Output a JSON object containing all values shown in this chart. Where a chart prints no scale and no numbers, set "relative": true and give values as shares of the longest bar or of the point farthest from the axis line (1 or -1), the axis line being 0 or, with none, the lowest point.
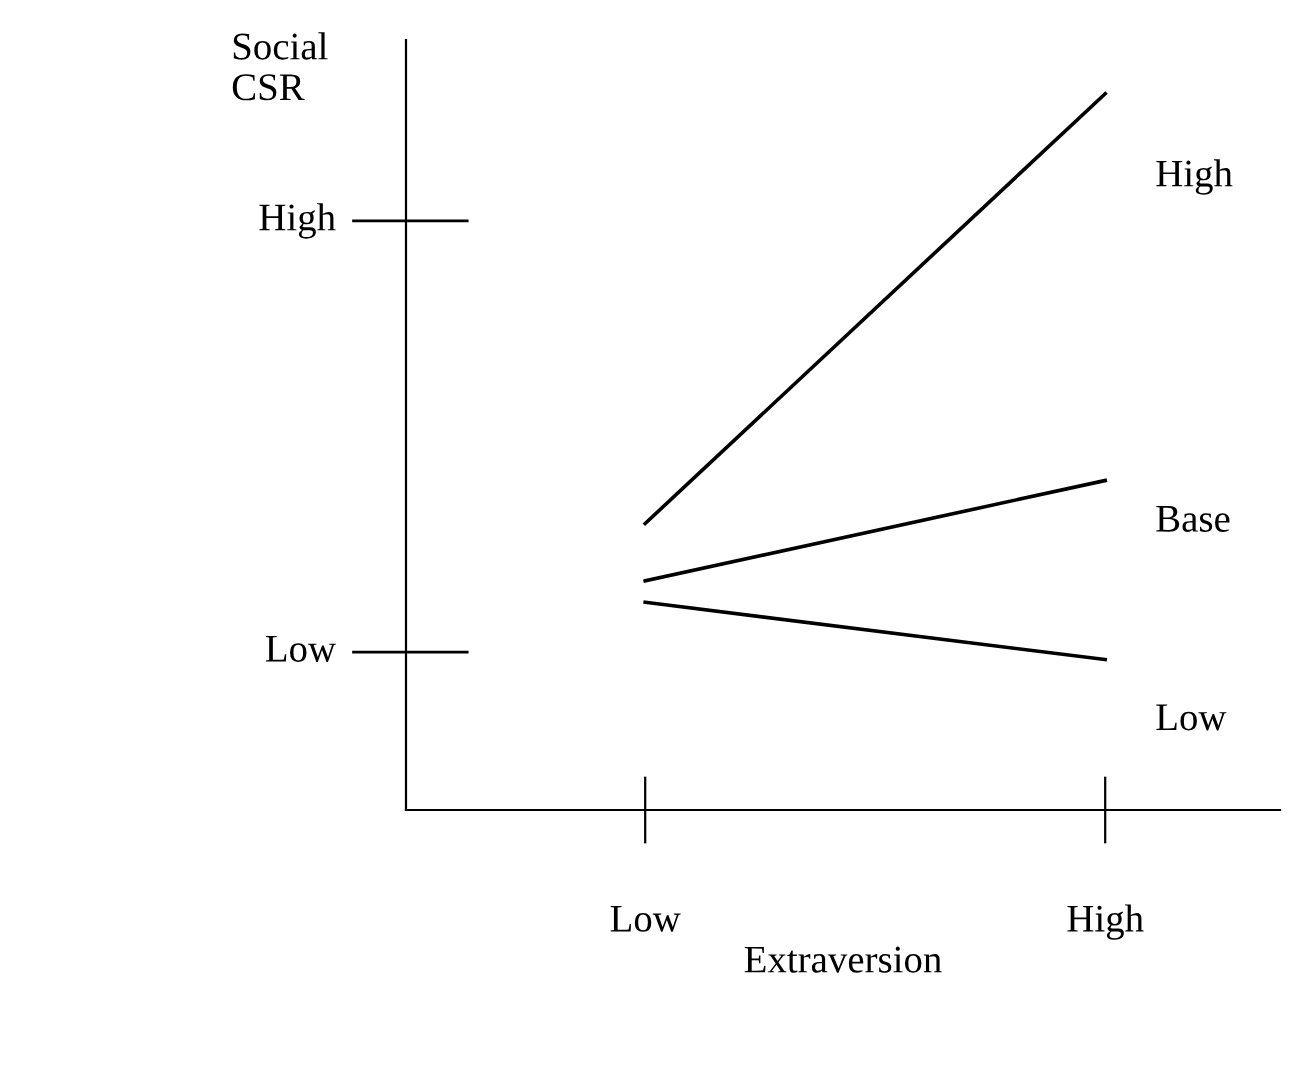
{
  "chart_data": {
    "type": "line",
    "relative": true,
    "xlabel": "Extraversion",
    "ylabel": "Social\nCSR",
    "categories": [
      "Low",
      "High"
    ],
    "annotations": [
      "Low",
      "High"
    ],
    "series": [
      {
        "name": "High",
        "color": "#000000",
        "values": [
          0.4,
          1.0
        ]
      },
      {
        "name": "Base",
        "color": "#000000",
        "values": [
          0.32,
          0.46
        ]
      },
      {
        "name": "Low",
        "color": "#000000",
        "values": [
          0.29,
          0.21
        ]
      }
    ],
    "marker": "none",
    "line_style": "solid",
    "grid": false,
    "legend": false
  }
}
